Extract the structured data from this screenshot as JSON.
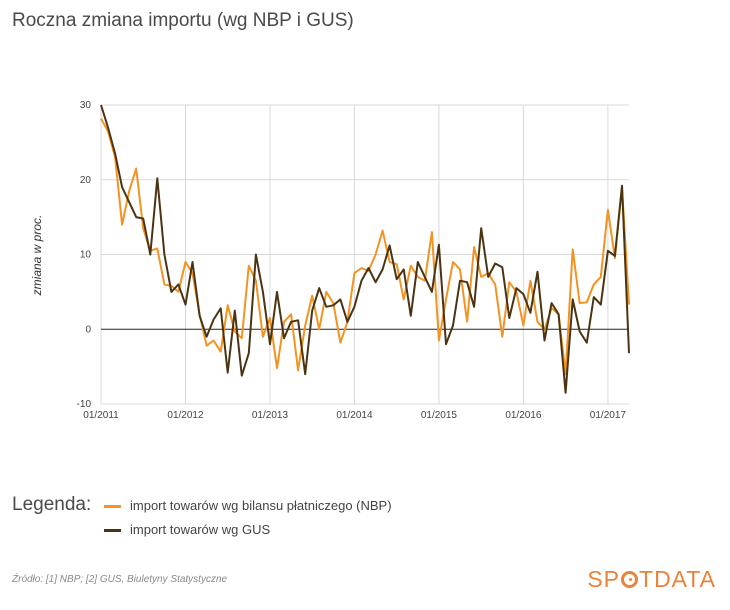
{
  "title": "Roczna zmiana importu (wg NBP i GUS)",
  "legend_title": "Legenda:",
  "source": "Źródło: [1] NBP; [2] GUS, Biuletyny Statystyczne",
  "brand": {
    "prefix": "SP",
    "suffix": "TDATA",
    "color": "#e8833a"
  },
  "colors": {
    "nbp": "#f39323",
    "gus": "#4b3413",
    "grid": "#d9d9d9",
    "zero_line": "#222222"
  },
  "chart_data": {
    "type": "line",
    "ylabel": "zmiana w proc.",
    "ylim": [
      -10,
      30
    ],
    "yticks": [
      -10,
      0,
      10,
      20,
      30
    ],
    "x_start": "01/2011",
    "x_end": "05/2017",
    "xticks": [
      "01/2011",
      "01/2012",
      "01/2013",
      "01/2014",
      "01/2015",
      "01/2016",
      "01/2017"
    ],
    "grid": "vertical+horizontal",
    "legend_position": "bottom-left",
    "series": [
      {
        "name": "import towarów wg bilansu płatniczego (NBP)",
        "color": "#f39323",
        "values": [
          28.2,
          26.5,
          23.0,
          14.0,
          18.5,
          21.5,
          13.5,
          10.5,
          10.8,
          6.0,
          5.8,
          5.0,
          9.0,
          7.5,
          2.0,
          -2.2,
          -1.5,
          -3.0,
          3.2,
          -0.3,
          -1.2,
          8.5,
          6.5,
          -1.0,
          1.5,
          -5.2,
          1.0,
          2.0,
          -5.5,
          0.5,
          4.5,
          0.0,
          5.0,
          3.5,
          -1.8,
          1.0,
          7.5,
          8.2,
          7.8,
          10.0,
          13.2,
          9.0,
          8.7,
          4.0,
          8.5,
          7.0,
          6.5,
          13.0,
          -1.5,
          4.0,
          9.0,
          8.0,
          1.0,
          11.0,
          7.0,
          7.5,
          6.0,
          -1.0,
          6.3,
          5.0,
          0.5,
          6.5,
          1.0,
          0.0,
          2.8,
          2.0,
          -6.0,
          10.7,
          3.5,
          3.6,
          6.0,
          7.0,
          16.0,
          9.5,
          19.0,
          3.3
        ]
      },
      {
        "name": "import towarów wg GUS",
        "color": "#4b3413",
        "values": [
          30.0,
          27.0,
          23.5,
          19.0,
          17.0,
          15.0,
          14.8,
          10.0,
          20.2,
          10.0,
          5.0,
          6.0,
          3.3,
          9.0,
          1.8,
          -1.0,
          1.3,
          2.8,
          -5.8,
          2.5,
          -6.2,
          -3.2,
          10.0,
          5.0,
          -2.0,
          5.0,
          -1.2,
          1.0,
          1.2,
          -6.0,
          2.5,
          5.5,
          3.0,
          3.2,
          4.0,
          1.0,
          3.0,
          6.5,
          8.2,
          6.3,
          8.0,
          11.2,
          6.7,
          8.0,
          1.8,
          9.0,
          7.0,
          5.0,
          11.3,
          -2.0,
          0.5,
          6.5,
          6.3,
          3.0,
          13.5,
          7.0,
          8.8,
          8.3,
          1.5,
          5.5,
          4.7,
          2.2,
          7.7,
          -1.5,
          3.5,
          2.0,
          -8.5,
          4.0,
          -0.3,
          -1.8,
          4.3,
          3.3,
          10.5,
          9.8,
          19.2,
          -3.2
        ]
      }
    ]
  }
}
